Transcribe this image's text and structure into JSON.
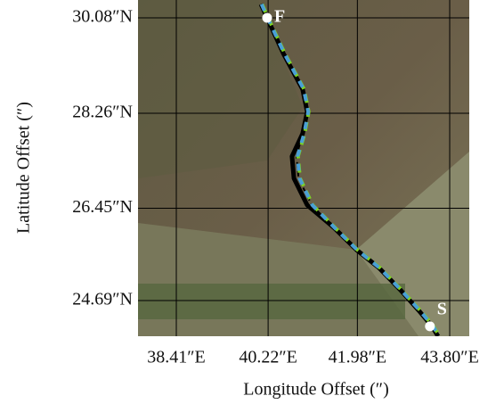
{
  "chart_data": {
    "type": "line",
    "xlabel": "Longitude Offset (″)",
    "ylabel": "Latitude Offset (″)",
    "xlim": [
      37.655,
      44.186
    ],
    "ylim": [
      24.01,
      30.42
    ],
    "xticks": [
      {
        "value": 38.41,
        "label": "38.41″E"
      },
      {
        "value": 40.22,
        "label": "40.22″E"
      },
      {
        "value": 41.98,
        "label": "41.98″E"
      },
      {
        "value": 43.8,
        "label": "43.80″E"
      }
    ],
    "yticks": [
      {
        "value": 30.08,
        "label": "30.08″N"
      },
      {
        "value": 28.26,
        "label": "28.26″N"
      },
      {
        "value": 26.45,
        "label": "26.45″N"
      },
      {
        "value": 24.69,
        "label": "24.69″N"
      }
    ],
    "grid": true,
    "series": [
      {
        "color": "#000000",
        "dash": "none",
        "width": 5,
        "x": [
          40.08,
          40.2,
          40.52,
          40.9,
          40.99,
          40.9,
          40.69,
          40.73,
          40.99,
          41.52,
          41.96,
          42.4,
          42.83,
          43.19,
          43.45,
          43.57
        ],
        "values": [
          30.34,
          30.08,
          29.4,
          28.72,
          28.29,
          27.87,
          27.44,
          27.02,
          26.51,
          26.08,
          25.66,
          25.32,
          24.89,
          24.5,
          24.2,
          24.01
        ]
      },
      {
        "color": "#000000",
        "dash": "6 4",
        "width": 2,
        "x": [
          40.08,
          40.2,
          40.52,
          40.9,
          40.99,
          40.9,
          40.78,
          40.82,
          41.08,
          41.52,
          41.96,
          42.4,
          42.83,
          43.19,
          43.45,
          43.57
        ],
        "values": [
          30.34,
          30.08,
          29.4,
          28.72,
          28.29,
          27.87,
          27.44,
          27.02,
          26.51,
          26.08,
          25.66,
          25.32,
          24.89,
          24.5,
          24.2,
          24.01
        ]
      },
      {
        "color": "#7ed321",
        "dash": "10 6",
        "width": 4,
        "x": [
          40.1,
          40.22,
          40.55,
          40.93,
          41.02,
          40.94,
          40.81,
          40.85,
          41.1,
          41.54,
          41.98,
          42.42,
          42.85,
          43.22,
          43.48,
          43.6
        ],
        "values": [
          30.34,
          30.08,
          29.4,
          28.72,
          28.29,
          27.87,
          27.44,
          27.02,
          26.51,
          26.08,
          25.66,
          25.32,
          24.89,
          24.5,
          24.2,
          24.01
        ]
      },
      {
        "color": "#4a9fd6",
        "dash": "8 8",
        "width": 4,
        "x": [
          40.09,
          40.21,
          40.54,
          40.92,
          41.01,
          40.93,
          40.8,
          40.84,
          41.09,
          41.53,
          41.97,
          42.41,
          42.84,
          43.21,
          43.47,
          43.59
        ],
        "values": [
          30.34,
          30.08,
          29.4,
          28.72,
          28.29,
          27.87,
          27.44,
          27.02,
          26.51,
          26.08,
          25.66,
          25.32,
          24.89,
          24.5,
          24.2,
          24.01
        ]
      }
    ],
    "annotations": [
      {
        "text": "F",
        "x": 40.2,
        "y": 30.08
      },
      {
        "text": "S",
        "x": 43.41,
        "y": 24.2
      }
    ]
  }
}
